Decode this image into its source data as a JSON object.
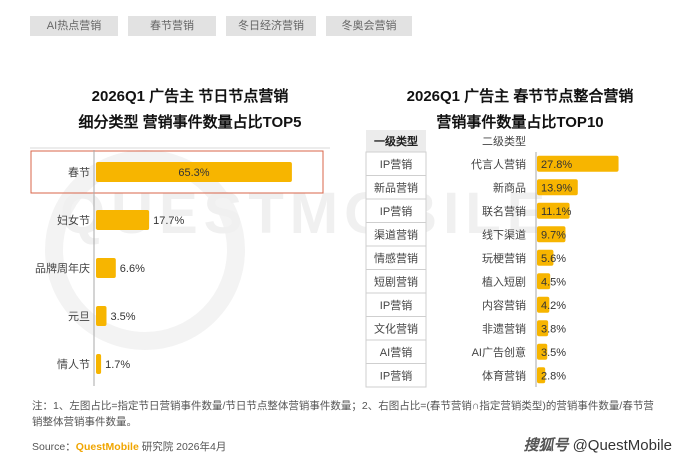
{
  "tabs": [
    {
      "label": "AI热点营销",
      "active": false
    },
    {
      "label": "春节营销",
      "active": true
    },
    {
      "label": "冬日经济营销",
      "active": false
    },
    {
      "label": "冬奥会营销",
      "active": false
    }
  ],
  "left_title": [
    "2026Q1  广告主 节日节点营销",
    "细分类型 营销事件数量占比TOP5"
  ],
  "right_title": [
    "2026Q1 广告主 春节节点整合营销",
    "营销事件数量占比TOP10"
  ],
  "watermark": "QUESTMOBILE",
  "colors": {
    "bar": "#f7b500",
    "highlight_border": "#d9654a",
    "level1_fill": "#ececec"
  },
  "chart_data": [
    {
      "type": "bar",
      "orientation": "horizontal",
      "categories": [
        "春节",
        "妇女节",
        "品牌周年庆",
        "元旦",
        "情人节"
      ],
      "values": [
        65.3,
        17.7,
        6.6,
        3.5,
        1.7
      ],
      "labels": [
        "65.3%",
        "17.7%",
        "6.6%",
        "3.5%",
        "1.7%"
      ],
      "highlight": "春节"
    },
    {
      "type": "bar",
      "orientation": "horizontal",
      "header_level1": "一级类型",
      "header_level2": "二级类型",
      "level1": [
        "IP营销",
        "新品营销",
        "IP营销",
        "渠道营销",
        "情感营销",
        "短剧营销",
        "IP营销",
        "文化营销",
        "AI营销",
        "IP营销"
      ],
      "categories": [
        "代言人营销",
        "新商品",
        "联名营销",
        "线下渠道",
        "玩梗营销",
        "植入短剧",
        "内容营销",
        "非遗营销",
        "AI广告创意",
        "体育营销"
      ],
      "values": [
        27.8,
        13.9,
        11.1,
        9.7,
        5.6,
        4.5,
        4.2,
        3.8,
        3.5,
        2.8
      ],
      "labels": [
        "27.8%",
        "13.9%",
        "11.1%",
        "9.7%",
        "5.6%",
        "4.5%",
        "4.2%",
        "3.8%",
        "3.5%",
        "2.8%"
      ]
    }
  ],
  "note": "注：1、左图占比=指定节日营销事件数量/节日节点整体营销事件数量；2、右图占比=(春节营销∩指定营销类型)的营销事件数量/春节营销整体营销事件数量。",
  "source": {
    "prefix": "Source：",
    "brand": "QuestMobile",
    "suffix": " 研究院 2026年4月"
  },
  "credit": {
    "logo": "搜狐号",
    "handle": "@QuestMobile"
  }
}
